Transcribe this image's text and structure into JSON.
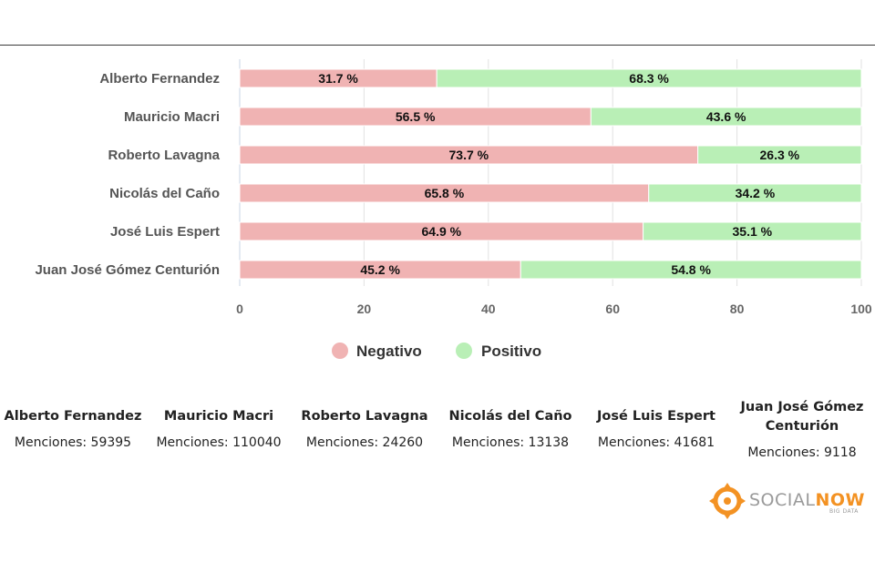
{
  "chart_data": {
    "type": "bar",
    "orientation": "horizontal",
    "stacked": true,
    "categories": [
      "Alberto Fernandez",
      "Mauricio Macri",
      "Roberto Lavagna",
      "Nicolás del Caño",
      "José Luis Espert",
      "Juan José Gómez Centurión"
    ],
    "series": [
      {
        "name": "Negativo",
        "color": "#f0b3b3",
        "values": [
          31.7,
          56.5,
          73.7,
          65.8,
          64.9,
          45.2
        ],
        "labels": [
          "31.7 %",
          "56.5 %",
          "73.7 %",
          "65.8 %",
          "64.9 %",
          "45.2 %"
        ]
      },
      {
        "name": "Positivo",
        "color": "#b9efb6",
        "values": [
          68.3,
          43.6,
          26.3,
          34.2,
          35.1,
          54.8
        ],
        "labels": [
          "68.3 %",
          "43.6 %",
          "26.3 %",
          "34.2 %",
          "35.1 %",
          "54.8 %"
        ]
      }
    ],
    "xlim": [
      0,
      100
    ],
    "x_ticks": [
      0,
      20,
      40,
      60,
      80,
      100
    ],
    "x_tick_labels": [
      "0",
      "20",
      "40",
      "60",
      "80",
      "100"
    ],
    "grid": true,
    "legend": "bottom-center",
    "title": "",
    "xlabel": "",
    "ylabel": ""
  },
  "candidates": [
    {
      "name": "Alberto Fernandez",
      "mentions": "Menciones: 59395"
    },
    {
      "name": "Mauricio Macri",
      "mentions": "Menciones: 110040"
    },
    {
      "name": "Roberto Lavagna",
      "mentions": "Menciones: 24260"
    },
    {
      "name": "Nicolás del Caño",
      "mentions": "Menciones: 13138"
    },
    {
      "name": "José Luis Espert",
      "mentions": "Menciones: 41681"
    },
    {
      "name": "Juan José Gómez Centurión",
      "mentions": "Menciones: 9118"
    }
  ],
  "logo": {
    "text_part1": "SOCIAL",
    "text_part2": "NOW",
    "subtitle": "BIG DATA",
    "icon": "socialnow-logo-icon",
    "accent": "#f39223"
  }
}
